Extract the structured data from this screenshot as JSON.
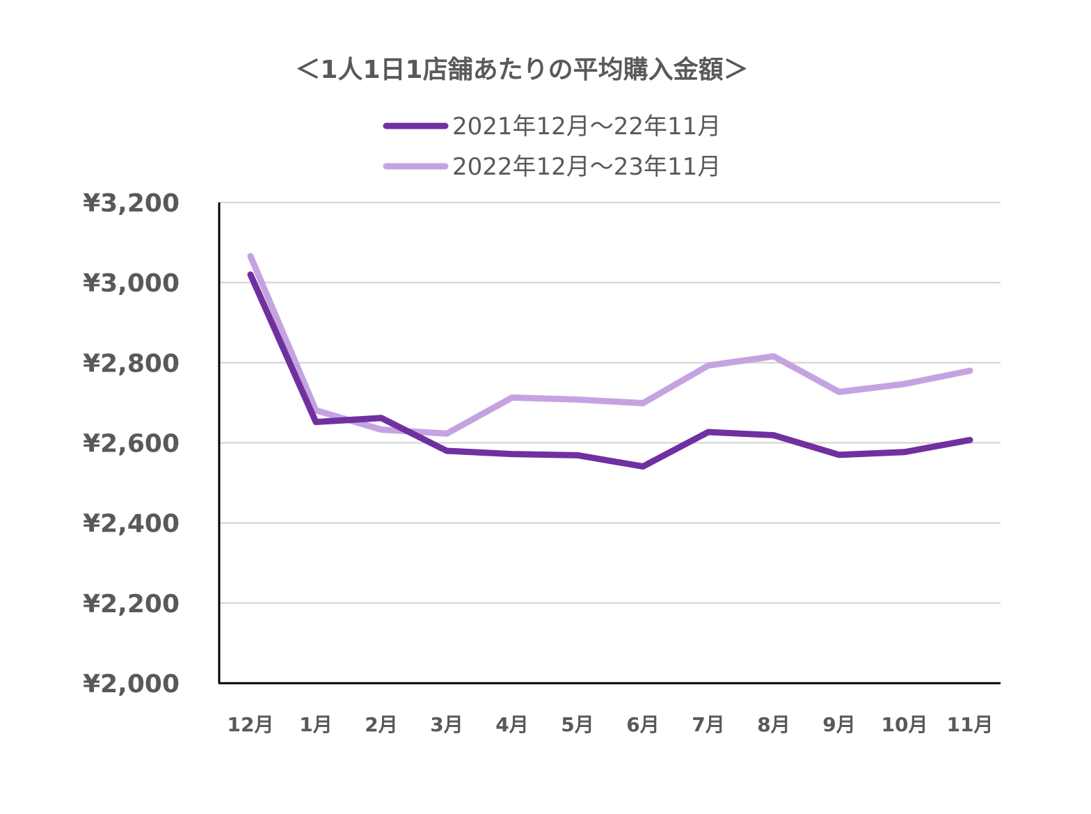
{
  "chart_data": {
    "type": "line",
    "title": "＜1人1日1店舗あたりの平均購入金額＞",
    "categories": [
      "12月",
      "1月",
      "2月",
      "3月",
      "4月",
      "5月",
      "6月",
      "7月",
      "8月",
      "9月",
      "10月",
      "11月"
    ],
    "series": [
      {
        "name": "2021年12月～22年11月",
        "color": "#7030A0",
        "values": [
          3020,
          2652,
          2662,
          2580,
          2572,
          2569,
          2541,
          2627,
          2619,
          2570,
          2577,
          2607
        ]
      },
      {
        "name": "2022年12月～23年11月",
        "color": "#C5A3E1",
        "values": [
          3066,
          2681,
          2633,
          2623,
          2713,
          2708,
          2699,
          2793,
          2816,
          2727,
          2747,
          2780
        ]
      }
    ],
    "ylim": [
      2000,
      3200
    ],
    "yticks": [
      3200,
      3000,
      2800,
      2600,
      2400,
      2200,
      2000
    ],
    "ytick_labels": [
      "¥3,200",
      "¥3,000",
      "¥2,800",
      "¥2,600",
      "¥2,400",
      "¥2,200",
      "¥2,000"
    ],
    "grid": true,
    "legend_position": "top-center"
  }
}
